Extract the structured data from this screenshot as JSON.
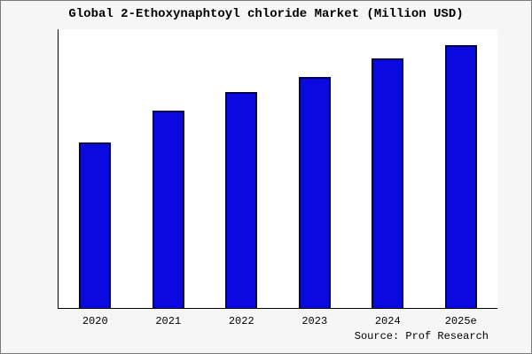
{
  "chart_data": {
    "type": "bar",
    "title": "Global 2-Ethoxynaphtoyl chloride Market (Million USD)",
    "categories": [
      "2020",
      "2021",
      "2022",
      "2023",
      "2024",
      "2025e"
    ],
    "values": [
      63,
      75,
      82,
      88,
      95,
      100
    ],
    "xlabel": "",
    "ylabel": "",
    "ylim": [
      0,
      106
    ],
    "grid": false,
    "legend_position": "none",
    "bar_color": "#0a0ae0",
    "bar_border_color": "#000050",
    "plot_background": "#ffffff",
    "page_background": "#f6f6f6"
  },
  "source": {
    "label": "Source: Prof Research"
  }
}
